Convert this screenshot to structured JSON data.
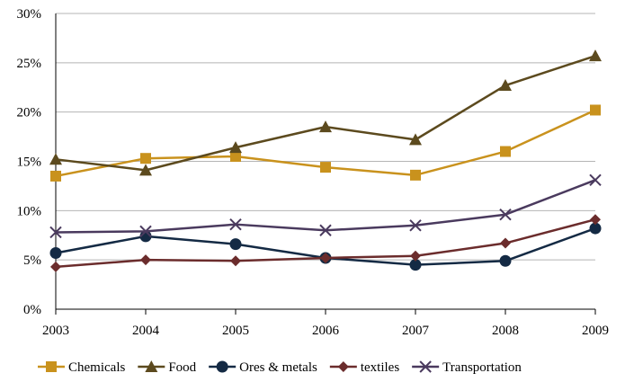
{
  "chart_data": {
    "type": "line",
    "categories": [
      "2003",
      "2004",
      "2005",
      "2006",
      "2007",
      "2008",
      "2009"
    ],
    "ylim": [
      0,
      30
    ],
    "yticks": [
      0,
      5,
      10,
      15,
      20,
      25,
      30
    ],
    "ytick_labels": [
      "0%",
      "5%",
      "10%",
      "15%",
      "20%",
      "25%",
      "30%"
    ],
    "grid": true,
    "legend_position": "bottom",
    "series": [
      {
        "name": "Chemicals",
        "color": "#C9921D",
        "marker": "square",
        "values": [
          13.5,
          15.3,
          15.5,
          14.4,
          13.6,
          16.0,
          20.2
        ]
      },
      {
        "name": "Food",
        "color": "#5C4A1E",
        "marker": "triangle",
        "values": [
          15.2,
          14.1,
          16.4,
          18.5,
          17.2,
          22.7,
          25.7
        ]
      },
      {
        "name": "Ores & metals",
        "color": "#142A44",
        "marker": "circle",
        "values": [
          5.7,
          7.4,
          6.6,
          5.2,
          4.5,
          4.9,
          8.2
        ]
      },
      {
        "name": "textiles",
        "color": "#6B2C2C",
        "marker": "diamond",
        "values": [
          4.3,
          5.0,
          4.9,
          5.2,
          5.4,
          6.7,
          9.1
        ]
      },
      {
        "name": "Transportation",
        "color": "#4A3A5E",
        "marker": "x",
        "values": [
          7.8,
          7.9,
          8.6,
          8.0,
          8.5,
          9.6,
          13.1
        ]
      }
    ]
  }
}
